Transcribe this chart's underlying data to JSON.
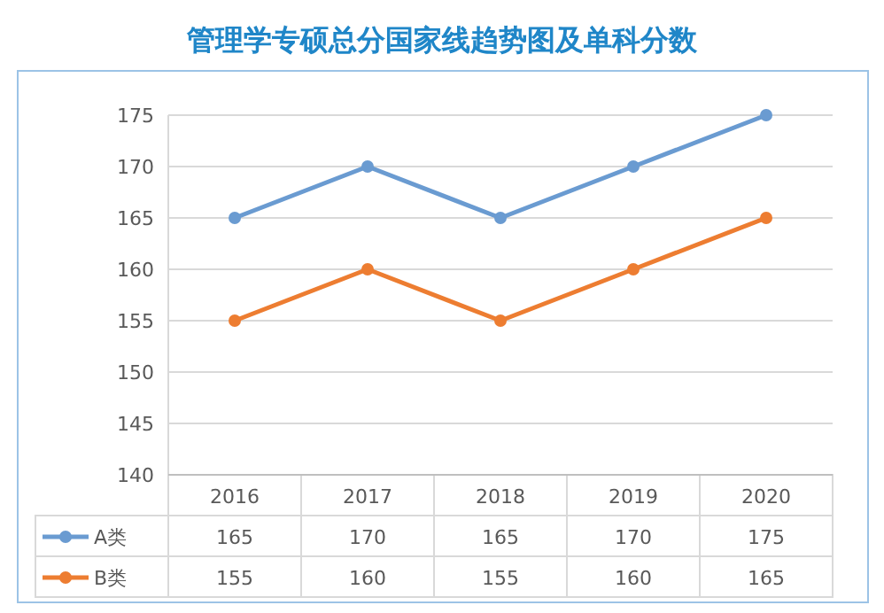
{
  "chart_data": {
    "type": "line",
    "title": "管理学专硕总分国家线趋势图及单科分数",
    "categories": [
      "2016",
      "2017",
      "2018",
      "2019",
      "2020"
    ],
    "series": [
      {
        "name": "A类",
        "color": "#6a9bd1",
        "values": [
          165,
          170,
          165,
          170,
          175
        ]
      },
      {
        "name": "B类",
        "color": "#ed7d31",
        "values": [
          155,
          160,
          155,
          160,
          165
        ]
      }
    ],
    "ylim": [
      140,
      175
    ],
    "yticks": [
      140,
      145,
      150,
      155,
      160,
      165,
      170,
      175
    ],
    "grid": "y",
    "marker": "circle",
    "line_style": "solid",
    "data_labels": true,
    "legend": "bottom"
  }
}
